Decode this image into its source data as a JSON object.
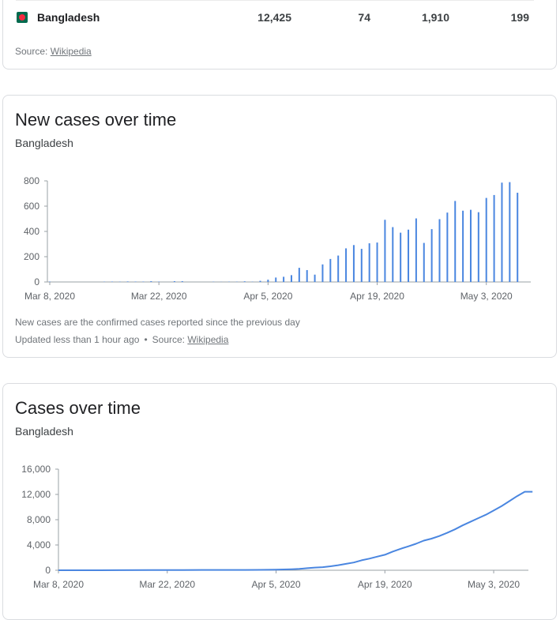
{
  "table": {
    "country": "Bangladesh",
    "cols": [
      "12,425",
      "74",
      "1,910",
      "199"
    ],
    "source_prefix": "Source: ",
    "source_link": "Wikipedia"
  },
  "new_cases_card": {
    "title": "New cases over time",
    "subtitle": "Bangladesh",
    "note": "New cases are the confirmed cases reported since the previous day",
    "updated": "Updated less than 1 hour ago",
    "dot": "•",
    "source_prefix": "Source: ",
    "source_link": "Wikipedia"
  },
  "total_cases_card": {
    "title": "Cases over time",
    "subtitle": "Bangladesh"
  },
  "colors": {
    "series": "#4a86e0",
    "axis": "#5f6368",
    "grid": "#e0e0e0"
  },
  "chart_data": [
    {
      "type": "bar",
      "title": "New cases over time",
      "subtitle": "Bangladesh",
      "x_start": "Mar 8, 2020",
      "x_ticks": [
        "Mar 8, 2020",
        "Mar 22, 2020",
        "Apr 5, 2020",
        "Apr 19, 2020",
        "May 3, 2020"
      ],
      "y_ticks": [
        "0",
        "200",
        "400",
        "600",
        "800"
      ],
      "ylim": [
        0,
        800
      ],
      "dates": [
        "Mar 8",
        "Mar 9",
        "Mar 10",
        "Mar 11",
        "Mar 12",
        "Mar 13",
        "Mar 14",
        "Mar 15",
        "Mar 16",
        "Mar 17",
        "Mar 18",
        "Mar 19",
        "Mar 20",
        "Mar 21",
        "Mar 22",
        "Mar 23",
        "Mar 24",
        "Mar 25",
        "Mar 26",
        "Mar 27",
        "Mar 28",
        "Mar 29",
        "Mar 30",
        "Mar 31",
        "Apr 1",
        "Apr 2",
        "Apr 3",
        "Apr 4",
        "Apr 5",
        "Apr 6",
        "Apr 7",
        "Apr 8",
        "Apr 9",
        "Apr 10",
        "Apr 11",
        "Apr 12",
        "Apr 13",
        "Apr 14",
        "Apr 15",
        "Apr 16",
        "Apr 17",
        "Apr 18",
        "Apr 19",
        "Apr 20",
        "Apr 21",
        "Apr 22",
        "Apr 23",
        "Apr 24",
        "Apr 25",
        "Apr 26",
        "Apr 27",
        "Apr 28",
        "Apr 29",
        "Apr 30",
        "May 1",
        "May 2",
        "May 3",
        "May 4",
        "May 5",
        "May 6",
        "May 7",
        "May 8"
      ],
      "values": [
        3,
        0,
        0,
        0,
        0,
        0,
        0,
        2,
        3,
        2,
        4,
        3,
        3,
        6,
        3,
        0,
        6,
        6,
        0,
        0,
        0,
        2,
        1,
        2,
        2,
        5,
        2,
        9,
        18,
        35,
        41,
        54,
        112,
        94,
        58,
        139,
        182,
        209,
        266,
        292,
        262,
        306,
        312,
        492,
        434,
        390,
        414,
        503,
        309,
        418,
        497,
        549,
        641,
        564,
        571,
        552,
        665,
        688,
        786,
        790,
        706,
        0
      ]
    },
    {
      "type": "line",
      "title": "Cases over time",
      "subtitle": "Bangladesh",
      "x_start": "Mar 8, 2020",
      "x_ticks": [
        "Mar 8, 2020",
        "Mar 22, 2020",
        "Apr 5, 2020",
        "Apr 19, 2020",
        "May 3, 2020"
      ],
      "y_ticks": [
        "0",
        "4,000",
        "8,000",
        "12,000",
        "16,000"
      ],
      "ylim": [
        0,
        16000
      ],
      "dates": [
        "Mar 8",
        "Mar 12",
        "Mar 16",
        "Mar 20",
        "Mar 24",
        "Mar 28",
        "Apr 1",
        "Apr 3",
        "Apr 5",
        "Apr 6",
        "Apr 7",
        "Apr 8",
        "Apr 9",
        "Apr 10",
        "Apr 11",
        "Apr 12",
        "Apr 13",
        "Apr 14",
        "Apr 15",
        "Apr 16",
        "Apr 17",
        "Apr 18",
        "Apr 19",
        "Apr 20",
        "Apr 21",
        "Apr 22",
        "Apr 23",
        "Apr 24",
        "Apr 25",
        "Apr 26",
        "Apr 27",
        "Apr 28",
        "Apr 29",
        "Apr 30",
        "May 1",
        "May 2",
        "May 3",
        "May 4",
        "May 5",
        "May 6",
        "May 7",
        "May 8"
      ],
      "values": [
        3,
        3,
        10,
        20,
        39,
        48,
        54,
        61,
        88,
        123,
        164,
        218,
        330,
        424,
        482,
        621,
        803,
        1012,
        1231,
        1572,
        1838,
        2144,
        2456,
        2948,
        3382,
        3772,
        4186,
        4689,
        4998,
        5416,
        5913,
        6462,
        7103,
        7667,
        8238,
        8790,
        9455,
        10143,
        10929,
        11719,
        12425,
        12425
      ]
    }
  ]
}
